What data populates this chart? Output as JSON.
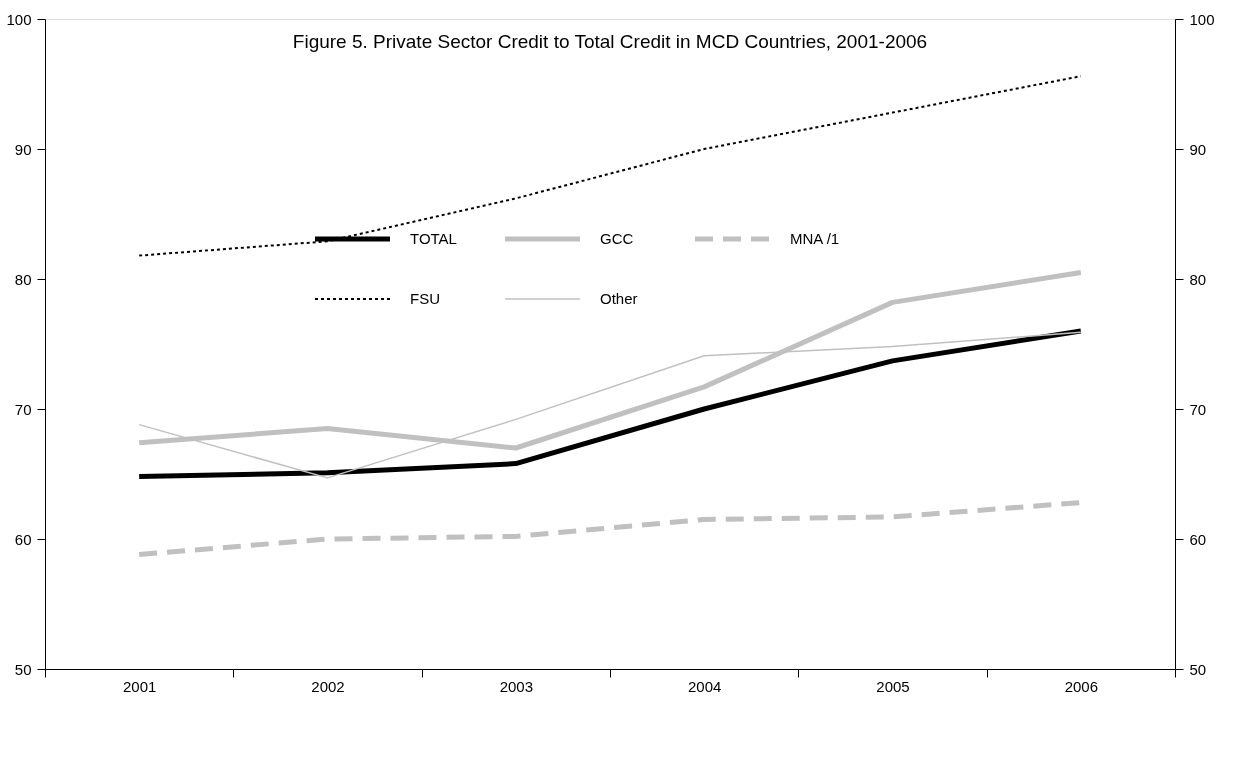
{
  "chart_data": {
    "type": "line",
    "title": "Figure 5. Private Sector Credit to Total Credit in MCD Countries, 2001-2006",
    "categories": [
      "2001",
      "2002",
      "2003",
      "2004",
      "2005",
      "2006"
    ],
    "series": [
      {
        "name": "TOTAL",
        "color": "#000000",
        "line_style": "solid",
        "values": [
          64.8,
          65.1,
          65.8,
          70.0,
          73.7,
          76.0
        ]
      },
      {
        "name": "GCC",
        "color": "#c0c0c0",
        "line_style": "solid",
        "values": [
          67.4,
          68.5,
          67.0,
          71.7,
          78.2,
          80.5
        ]
      },
      {
        "name": "MNA /1",
        "color": "#c0c0c0",
        "line_style": "dashed",
        "values": [
          58.8,
          60.0,
          60.2,
          61.5,
          61.7,
          62.8
        ]
      },
      {
        "name": "FSU",
        "color": "#000000",
        "line_style": "dotted",
        "values": [
          81.8,
          82.9,
          86.2,
          90.0,
          92.8,
          95.6
        ]
      },
      {
        "name": "Other",
        "color": "#c0c0c0",
        "line_style": "solid",
        "values": [
          68.8,
          64.7,
          69.2,
          74.1,
          74.8,
          75.9
        ]
      }
    ],
    "ylim": [
      50,
      100
    ],
    "yticks": [
      50,
      60,
      70,
      80,
      90,
      100
    ],
    "y2lim": [
      50,
      100
    ],
    "y2ticks": [
      50,
      60,
      70,
      80,
      90,
      100
    ],
    "grid": false,
    "legend": "top",
    "marker": "none"
  }
}
